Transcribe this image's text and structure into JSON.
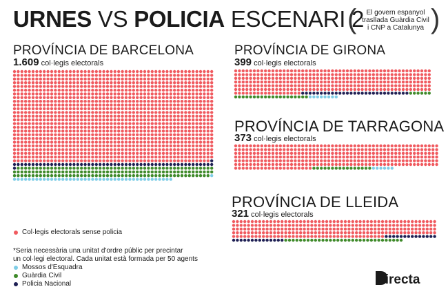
{
  "header": {
    "title_w1": "URNES",
    "title_w2": "VS",
    "title_w3": "POLICIA",
    "title_w4": "ESCENARI 2",
    "subtitle_l1": "El govern espanyol",
    "subtitle_l2": "trasllada Guàrdia Civil",
    "subtitle_l3": "i CNP a Catalunya"
  },
  "colors": {
    "no_police": "#f05a5f",
    "mossos": "#7fcde6",
    "guardia": "#3f8a2a",
    "nacional": "#1f2054",
    "brand": "#1b1b1b"
  },
  "provinces": {
    "barcelona": {
      "name": "PROVÍNCIA DE BARCELONA",
      "count": "1.609",
      "unit": "col·legis electorals"
    },
    "girona": {
      "name": "PROVÍNCIA DE GIRONA",
      "count": "399",
      "unit": "col·legis electorals"
    },
    "tarragona": {
      "name": "PROVÍNCIA DE TARRAGONA",
      "count": "373",
      "unit": "col·legis electorals"
    },
    "lleida": {
      "name": "PROVÍNCIA DE LLEIDA",
      "count": "321",
      "unit": "col·legis electorals"
    }
  },
  "chart_data": {
    "type": "waffle",
    "unit_note": "Cada unitat està formada per 50 agents",
    "categories": [
      "Col·legis electorals sense policia",
      "Policia Nacional",
      "Guàrdia Civil",
      "Mossos d'Esquadra"
    ],
    "series": [
      {
        "province": "Província de Barcelona",
        "total": 1609,
        "values": [
          1349,
          56,
          160,
          44
        ]
      },
      {
        "province": "Província de Girona",
        "total": 399,
        "values": [
          336,
          29,
          26,
          8
        ]
      },
      {
        "province": "Província de Tarragona",
        "total": 373,
        "values": [
          351,
          0,
          16,
          6
        ]
      },
      {
        "province": "Província de Lleida",
        "total": 321,
        "values": [
          261,
          28,
          32,
          0
        ]
      }
    ]
  },
  "legend": {
    "no_police": "Col·legis electorals sense policia",
    "footnote_l1": "*Seria necessària una unitat d'ordre públic per precintar",
    "footnote_l2": "un col·legi electoral. Cada unitat està formada per 50 agents",
    "mossos": "Mossos d'Esquadra",
    "guardia": "Guàrdia Civil",
    "nacional": "Policia Nacional"
  },
  "brand": {
    "name": "Directa"
  }
}
